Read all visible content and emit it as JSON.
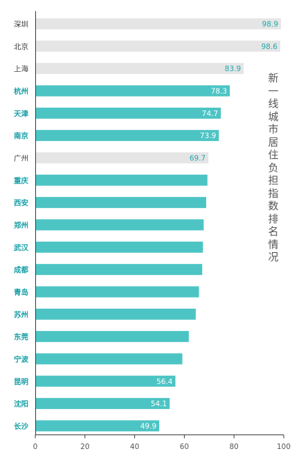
{
  "chart_data": {
    "type": "bar",
    "orientation": "horizontal",
    "title": "新一线城市居住负担指数排名情况",
    "categories": [
      "深圳",
      "北京",
      "上海",
      "杭州",
      "天津",
      "南京",
      "广州",
      "重庆",
      "西安",
      "郑州",
      "武汉",
      "成都",
      "青岛",
      "苏州",
      "东莞",
      "宁波",
      "昆明",
      "沈阳",
      "长沙"
    ],
    "values": [
      98.9,
      98.6,
      83.9,
      78.3,
      74.7,
      73.9,
      69.7,
      69.3,
      68.8,
      67.8,
      67.5,
      67.2,
      65.9,
      64.6,
      61.8,
      59.2,
      56.4,
      54.1,
      49.9
    ],
    "highlight": [
      "深圳",
      "北京",
      "上海",
      "广州"
    ],
    "value_labels": {
      "深圳": "98.9",
      "北京": "98.6",
      "上海": "83.9",
      "杭州": "78.3",
      "天津": "74.7",
      "南京": "73.9",
      "广州": "69.7",
      "昆明": "56.4",
      "沈阳": "54.1",
      "长沙": "49.9"
    },
    "xlim": [
      0,
      100
    ],
    "xticks": [
      "0",
      "20",
      "40",
      "60",
      "80",
      "100"
    ],
    "grid": false,
    "colors": {
      "tier1_bar": "#e5e5e5",
      "tier1_label": "#3a3a3a",
      "newtier1_bar": "#4dc4c4",
      "newtier1_label": "#1aa0a8",
      "value_on_gray": "#22a7ad",
      "value_on_teal": "#ffffff",
      "axis": "#333333"
    }
  }
}
